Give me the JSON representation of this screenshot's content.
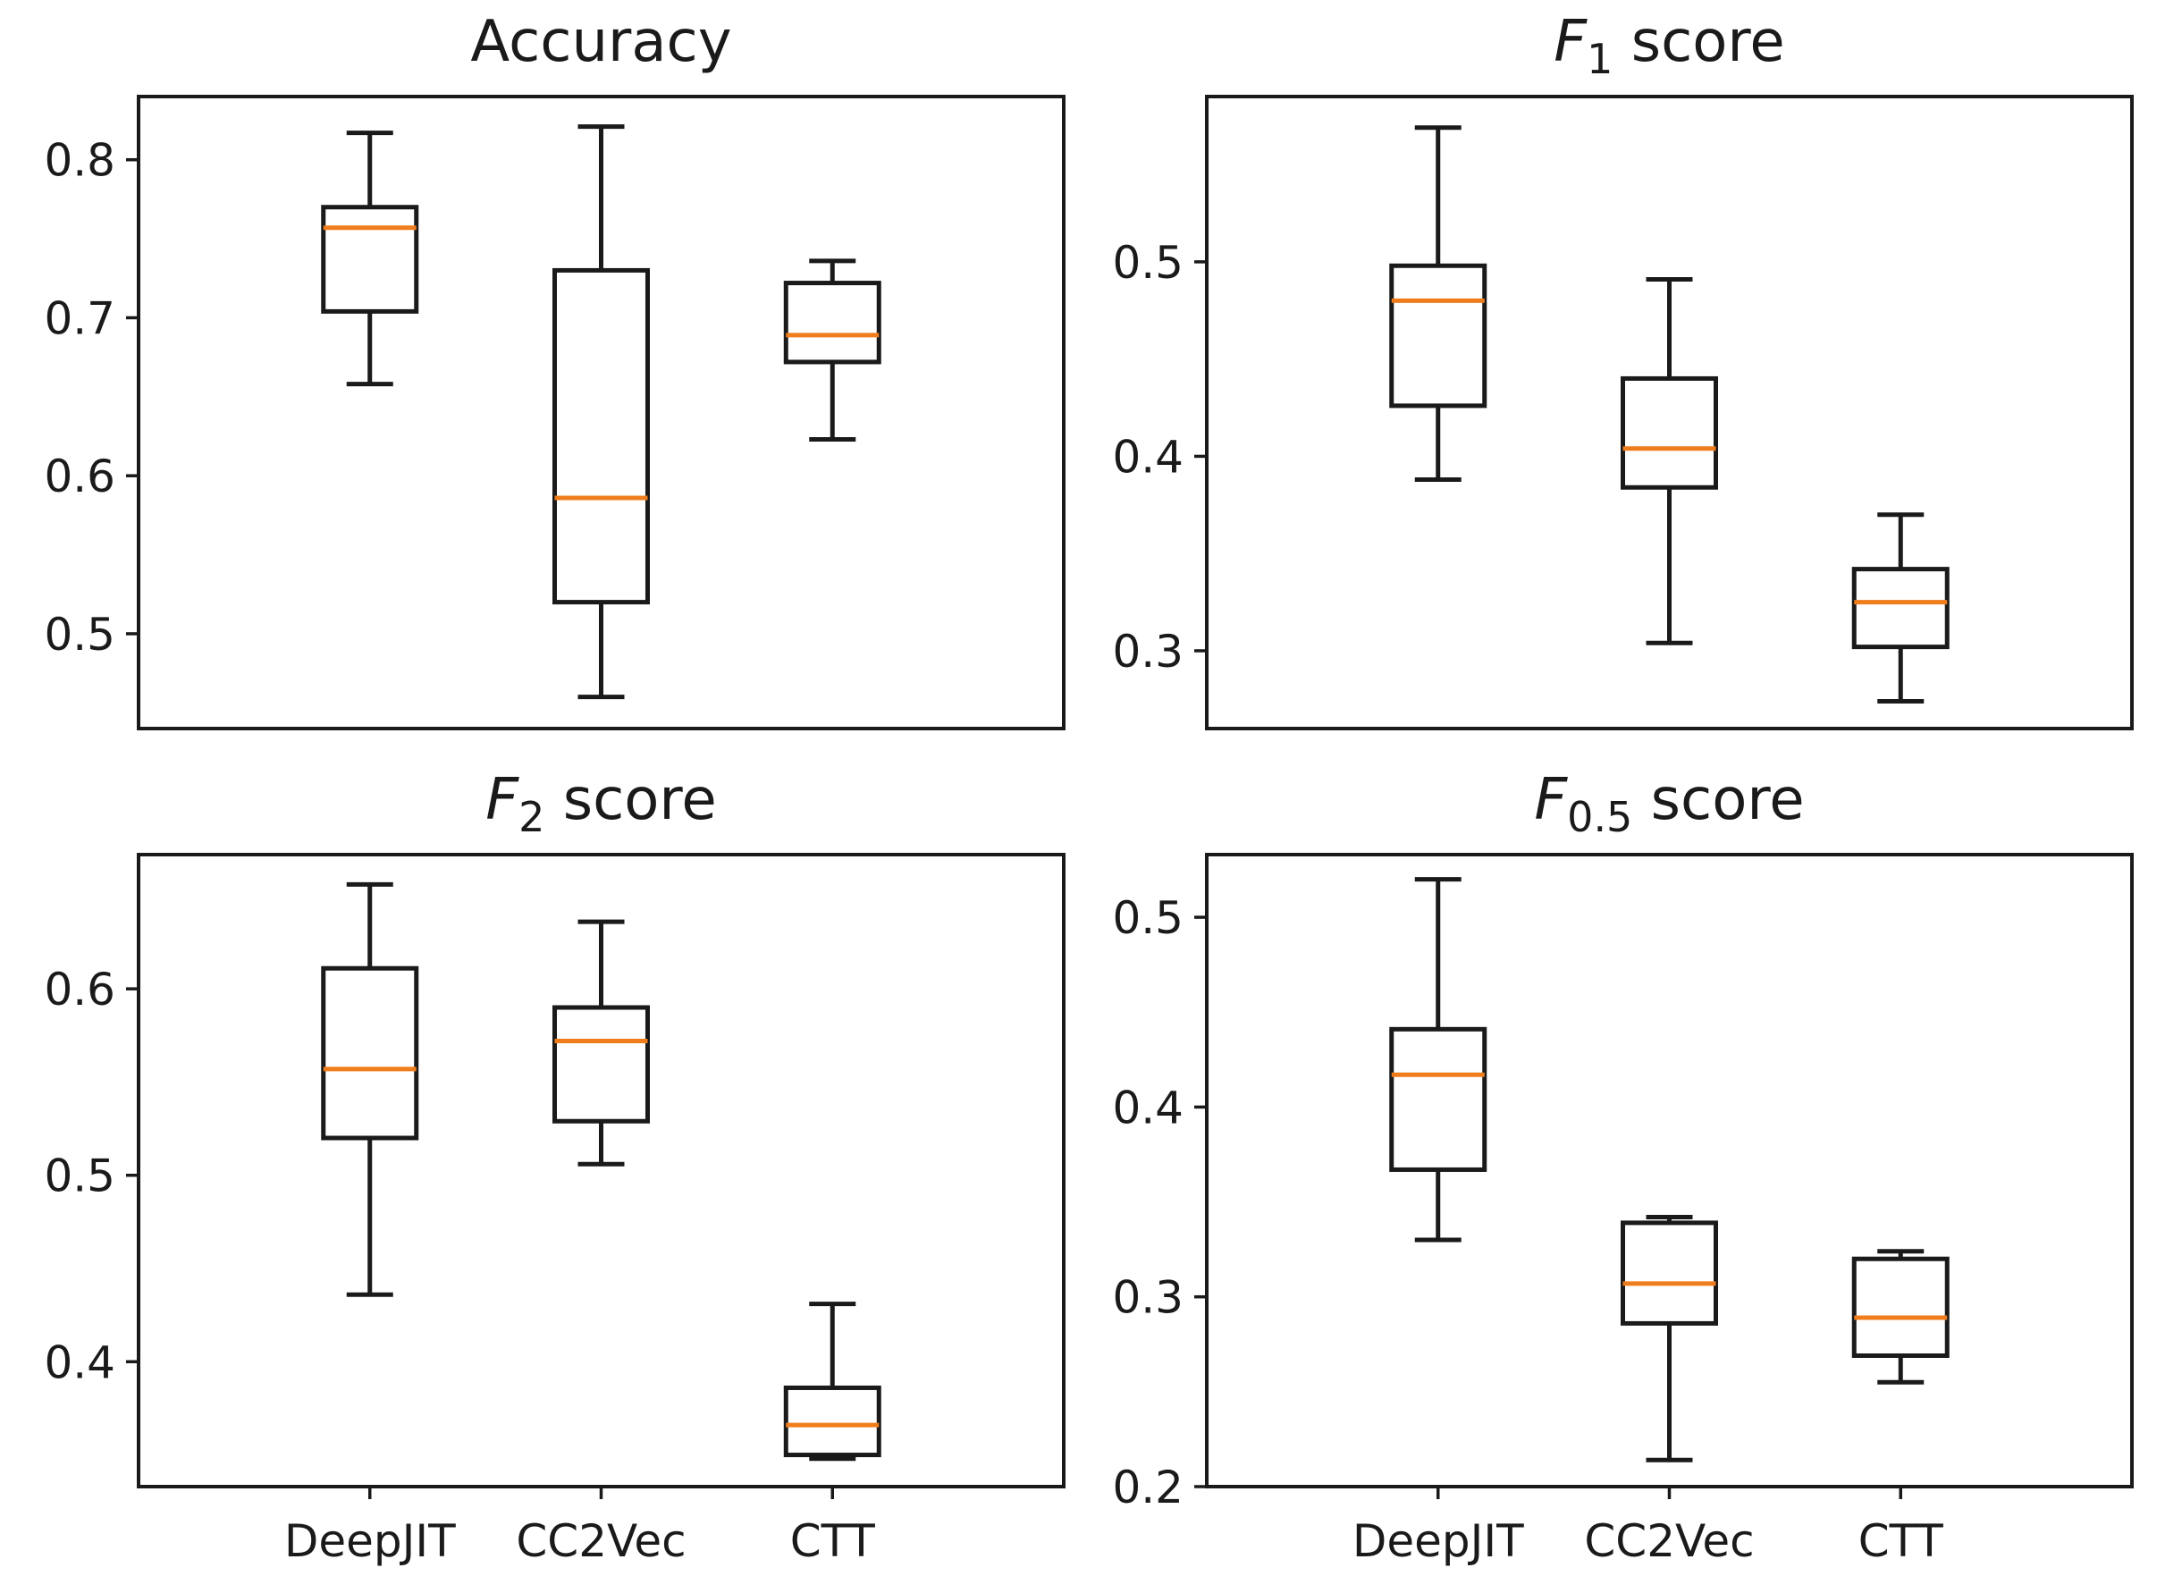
{
  "colors": {
    "axes": "#1a1a1a",
    "median": "#f07d1c",
    "background": "#ffffff"
  },
  "chart_data": [
    {
      "type": "box",
      "title": "Accuracy",
      "title_italic": "",
      "title_sub": "",
      "title_rest": "",
      "categories": [
        "DeepJIT",
        "CC2Vec",
        "CTT"
      ],
      "show_xticklabels": false,
      "ylim": [
        0.44,
        0.84
      ],
      "yticks": [
        0.5,
        0.6,
        0.7,
        0.8
      ],
      "ytick_labels": [
        "0.5",
        "0.6",
        "0.7",
        "0.8"
      ],
      "boxes": [
        {
          "category": "DeepJIT",
          "whisker_low": 0.658,
          "q1": 0.704,
          "median": 0.757,
          "q3": 0.77,
          "whisker_high": 0.817
        },
        {
          "category": "CC2Vec",
          "whisker_low": 0.46,
          "q1": 0.52,
          "median": 0.586,
          "q3": 0.73,
          "whisker_high": 0.821
        },
        {
          "category": "CTT",
          "whisker_low": 0.623,
          "q1": 0.672,
          "median": 0.689,
          "q3": 0.722,
          "whisker_high": 0.736
        }
      ]
    },
    {
      "type": "box",
      "title": "",
      "title_italic": "F",
      "title_sub": "1",
      "title_rest": " score",
      "categories": [
        "DeepJIT",
        "CC2Vec",
        "CTT"
      ],
      "show_xticklabels": false,
      "ylim": [
        0.26,
        0.585
      ],
      "yticks": [
        0.3,
        0.4,
        0.5
      ],
      "ytick_labels": [
        "0.3",
        "0.4",
        "0.5"
      ],
      "boxes": [
        {
          "category": "DeepJIT",
          "whisker_low": 0.388,
          "q1": 0.426,
          "median": 0.48,
          "q3": 0.498,
          "whisker_high": 0.569
        },
        {
          "category": "CC2Vec",
          "whisker_low": 0.304,
          "q1": 0.384,
          "median": 0.404,
          "q3": 0.44,
          "whisker_high": 0.491
        },
        {
          "category": "CTT",
          "whisker_low": 0.274,
          "q1": 0.302,
          "median": 0.325,
          "q3": 0.342,
          "whisker_high": 0.37
        }
      ]
    },
    {
      "type": "box",
      "title": "",
      "title_italic": "F",
      "title_sub": "2",
      "title_rest": " score",
      "categories": [
        "DeepJIT",
        "CC2Vec",
        "CTT"
      ],
      "show_xticklabels": true,
      "ylim": [
        0.333,
        0.672
      ],
      "yticks": [
        0.4,
        0.5,
        0.6
      ],
      "ytick_labels": [
        "0.4",
        "0.5",
        "0.6"
      ],
      "boxes": [
        {
          "category": "DeepJIT",
          "whisker_low": 0.436,
          "q1": 0.52,
          "median": 0.557,
          "q3": 0.611,
          "whisker_high": 0.656
        },
        {
          "category": "CC2Vec",
          "whisker_low": 0.506,
          "q1": 0.529,
          "median": 0.572,
          "q3": 0.59,
          "whisker_high": 0.636
        },
        {
          "category": "CTT",
          "whisker_low": 0.348,
          "q1": 0.35,
          "median": 0.366,
          "q3": 0.386,
          "whisker_high": 0.431
        }
      ]
    },
    {
      "type": "box",
      "title": "",
      "title_italic": "F",
      "title_sub": "0.5",
      "title_rest": " score",
      "categories": [
        "DeepJIT",
        "CC2Vec",
        "CTT"
      ],
      "show_xticklabels": true,
      "ylim": [
        0.2,
        0.533
      ],
      "yticks": [
        0.2,
        0.3,
        0.4,
        0.5
      ],
      "ytick_labels": [
        "0.2",
        "0.3",
        "0.4",
        "0.5"
      ],
      "boxes": [
        {
          "category": "DeepJIT",
          "whisker_low": 0.33,
          "q1": 0.367,
          "median": 0.417,
          "q3": 0.441,
          "whisker_high": 0.52
        },
        {
          "category": "CC2Vec",
          "whisker_low": 0.214,
          "q1": 0.286,
          "median": 0.307,
          "q3": 0.339,
          "whisker_high": 0.342
        },
        {
          "category": "CTT",
          "whisker_low": 0.255,
          "q1": 0.269,
          "median": 0.289,
          "q3": 0.32,
          "whisker_high": 0.324
        }
      ]
    }
  ]
}
